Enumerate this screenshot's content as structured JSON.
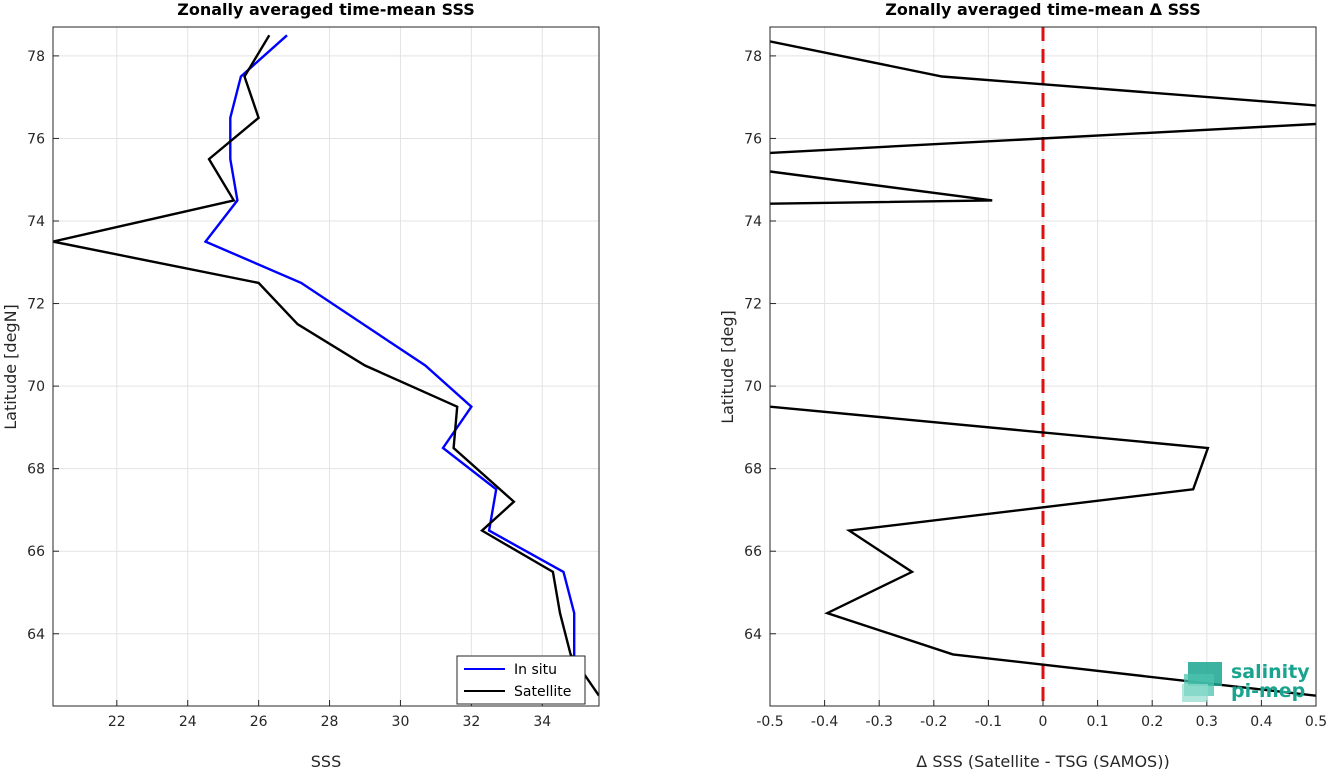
{
  "chart_data": [
    {
      "type": "line",
      "title": "Zonally averaged time-mean SSS",
      "xlabel": "SSS",
      "ylabel": "Latitude [degN]",
      "xlim": [
        20.2,
        35.6
      ],
      "ylim": [
        62.25,
        78.7
      ],
      "xticks": [
        22,
        24,
        26,
        28,
        30,
        32,
        34
      ],
      "yticks": [
        64,
        66,
        68,
        70,
        72,
        74,
        76,
        78
      ],
      "grid": true,
      "legend": "bottom-right",
      "series": [
        {
          "name": "In situ",
          "color": "#0000ff",
          "x": [
            26.8,
            25.5,
            25.2,
            25.2,
            25.4,
            24.5,
            27.2,
            30.7,
            32.0,
            31.2,
            32.7,
            32.5,
            34.6,
            34.9,
            34.9
          ],
          "y": [
            78.5,
            77.5,
            76.5,
            75.5,
            74.5,
            73.5,
            72.5,
            70.5,
            69.5,
            68.5,
            67.5,
            66.5,
            65.5,
            64.5,
            62.5
          ]
        },
        {
          "name": "Satellite",
          "color": "#000000",
          "x": [
            26.3,
            25.6,
            26.0,
            24.6,
            25.3,
            20.2,
            26.0,
            27.1,
            29.0,
            31.6,
            31.5,
            33.2,
            32.3,
            34.3,
            34.5,
            34.8,
            35.6
          ],
          "y": [
            78.5,
            77.5,
            76.5,
            75.5,
            74.5,
            73.5,
            72.5,
            71.5,
            70.5,
            69.5,
            68.5,
            67.2,
            66.5,
            65.5,
            64.5,
            63.5,
            62.5
          ]
        }
      ]
    },
    {
      "type": "line",
      "title": "Zonally averaged time-mean Δ SSS",
      "xlabel": "Δ SSS (Satellite - TSG (SAMOS))",
      "ylabel": "Latitude [deg]",
      "xlim": [
        -0.5,
        0.5
      ],
      "ylim": [
        62.25,
        78.7
      ],
      "xticks": [
        -0.5,
        -0.4,
        -0.3,
        -0.2,
        -0.1,
        0,
        0.1,
        0.2,
        0.3,
        0.4,
        0.5
      ],
      "xtick_labels": [
        "-0.5",
        "-0.4",
        "-0.3",
        "-0.2",
        "-0.1",
        "0",
        "0.1",
        "0.2",
        "0.3",
        "0.4",
        "0.5"
      ],
      "yticks": [
        64,
        66,
        68,
        70,
        72,
        74,
        76,
        78
      ],
      "grid": true,
      "reference_line": {
        "x": 0,
        "color": "#dd1111",
        "style": "dashed"
      },
      "segments": [
        {
          "color": "#000000",
          "x": [
            -0.5,
            -0.185,
            0.5
          ],
          "y": [
            78.35,
            77.5,
            76.8
          ]
        },
        {
          "color": "#000000",
          "x": [
            0.5,
            -0.5
          ],
          "y": [
            76.35,
            75.65
          ]
        },
        {
          "color": "#000000",
          "x": [
            -0.5,
            -0.093,
            -0.5
          ],
          "y": [
            75.2,
            74.5,
            74.42
          ]
        },
        {
          "color": "#000000",
          "x": [
            -0.5,
            0.302,
            0.275,
            -0.355,
            -0.24,
            -0.395,
            -0.165,
            0.5
          ],
          "y": [
            69.5,
            68.5,
            67.5,
            66.5,
            65.5,
            64.5,
            63.5,
            62.5
          ]
        }
      ]
    }
  ],
  "logo": {
    "line1": "salinity",
    "line2": "pi-mep",
    "color": "#1aa48f"
  }
}
